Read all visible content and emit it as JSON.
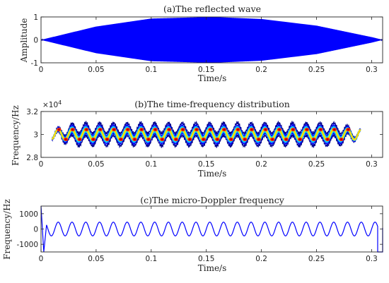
{
  "chart_data": [
    {
      "type": "line",
      "title": "(a)The reflected wave",
      "xlabel": "Time/s",
      "ylabel": "Amplitude",
      "xlim": [
        0,
        0.31
      ],
      "ylim": [
        -1,
        1
      ],
      "x_ticks": [
        "0",
        "0.05",
        "0.1",
        "0.15",
        "0.2",
        "0.25",
        "0.3"
      ],
      "y_ticks": [
        "-1",
        "0",
        "1"
      ],
      "series": [
        {
          "color": "#0000ff",
          "signal": "amplitude-modulated oscillation",
          "envelope": {
            "x": [
              0,
              0.05,
              0.1,
              0.155,
              0.2,
              0.25,
              0.3,
              0.31
            ],
            "y": [
              0,
              0.58,
              0.93,
              1.0,
              0.91,
              0.62,
              0.12,
              0
            ]
          }
        }
      ]
    },
    {
      "type": "heatmap",
      "title": "(b)The time-frequency distribution",
      "xlabel": "Time/s",
      "ylabel": "Frequency/Hz",
      "y_exponent": "×10",
      "y_exponent_power": "4",
      "xlim": [
        0,
        0.31
      ],
      "ylim": [
        2.8,
        3.2
      ],
      "x_ticks": [
        "0",
        "0.05",
        "0.1",
        "0.15",
        "0.2",
        "0.25",
        "0.3"
      ],
      "y_ticks": [
        "2.8",
        "3",
        "3.2"
      ],
      "center_frequency": 3.0,
      "oscillation_amplitude": 0.045,
      "oscillation_frequency_hz": 80,
      "time_span": [
        0.01,
        0.29
      ],
      "colormap": [
        "#00008b",
        "#0000ff",
        "#00c8ff",
        "#7dff7d",
        "#ffd700",
        "#ff2a00",
        "#b40000"
      ]
    },
    {
      "type": "line",
      "title": "(c)The micro-Doppler frequency",
      "xlabel": "Time/s",
      "ylabel": "Frequency/Hz",
      "xlim": [
        0,
        0.31
      ],
      "ylim": [
        -1500,
        1500
      ],
      "x_ticks": [
        "0",
        "0.05",
        "0.1",
        "0.15",
        "0.2",
        "0.25",
        "0.3"
      ],
      "y_ticks": [
        "1000",
        "0",
        "-1000"
      ],
      "series": [
        {
          "color": "#0000ff",
          "amplitude": 450,
          "frequency_hz": 80,
          "sweep_start": [
            0,
            0.0025
          ],
          "sweep_end": [
            0.3055,
            0.31
          ]
        }
      ]
    }
  ]
}
